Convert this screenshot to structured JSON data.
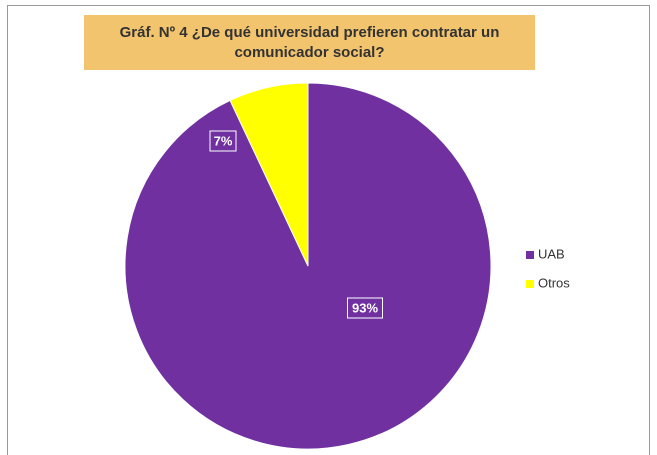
{
  "chart_data": {
    "type": "pie",
    "title": "Gráf. Nº 4 ¿De qué universidad prefieren contratar un comunicador social?",
    "categories": [
      "UAB",
      "Otros"
    ],
    "values": [
      93,
      7
    ],
    "value_labels": [
      "93%",
      "7%"
    ],
    "colors": [
      "#7030a0",
      "#ffff00"
    ],
    "legend": "right"
  }
}
